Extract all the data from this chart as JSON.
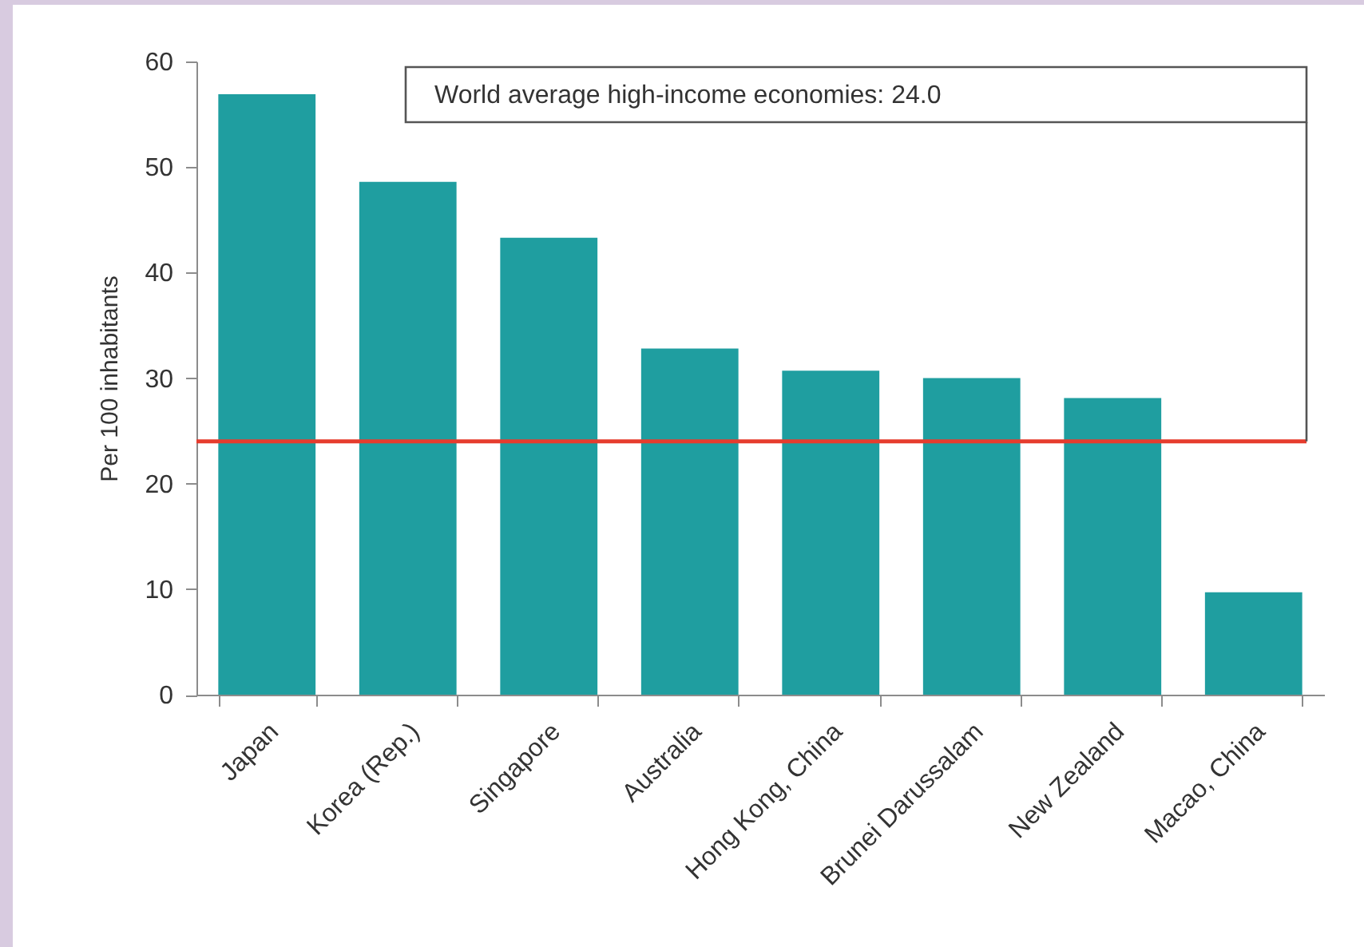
{
  "chart_data": {
    "type": "bar",
    "categories": [
      "Japan",
      "Korea (Rep.)",
      "Singapore",
      "Australia",
      "Hong Kong, China",
      "Brunei Darussalam",
      "New Zealand",
      "Macao, China"
    ],
    "values": [
      56.9,
      48.6,
      43.3,
      32.8,
      30.7,
      30.0,
      28.1,
      9.7
    ],
    "color": "#1f9ea0",
    "ylabel": "Per 100 inhabitants",
    "ylim": [
      0,
      60
    ],
    "yticks": [
      0,
      10,
      20,
      30,
      40,
      50,
      60
    ],
    "ref_lines": [
      {
        "axis": "y",
        "value": 24.0,
        "color": "#e63c2e"
      }
    ],
    "annotations": [
      "World average high-income economies: 24.0"
    ]
  }
}
